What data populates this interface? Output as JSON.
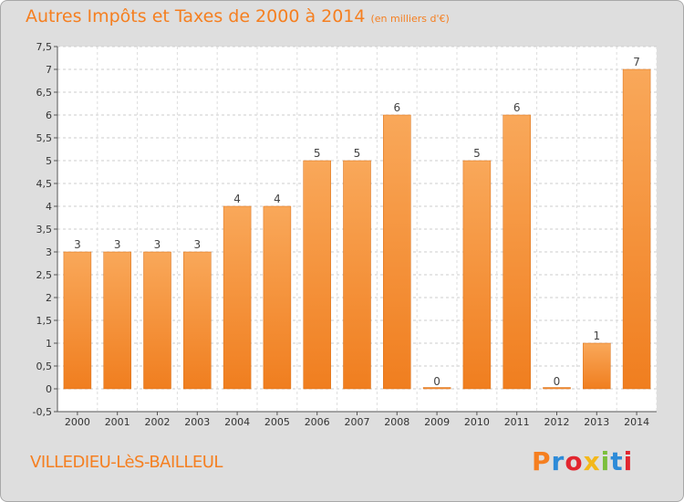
{
  "chart_data": {
    "type": "bar",
    "title": "Autres Impôts et Taxes de 2000 à 2014",
    "subtitle": "(en milliers d'€)",
    "xlabel": "",
    "ylabel": "",
    "categories": [
      "2000",
      "2001",
      "2002",
      "2003",
      "2004",
      "2005",
      "2006",
      "2007",
      "2008",
      "2009",
      "2010",
      "2011",
      "2012",
      "2013",
      "2014"
    ],
    "values": [
      3,
      3,
      3,
      3,
      4,
      4,
      5,
      5,
      6,
      0,
      5,
      6,
      0,
      1,
      7
    ],
    "data_labels": [
      "3",
      "3",
      "3",
      "3",
      "4",
      "4",
      "5",
      "5",
      "6",
      "0",
      "5",
      "6",
      "0",
      "1",
      "7"
    ],
    "ylim": [
      -0.5,
      7.5
    ],
    "yticks": [
      -0.5,
      0,
      0.5,
      1,
      1.5,
      2,
      2.5,
      3,
      3.5,
      4,
      4.5,
      5,
      5.5,
      6,
      6.5,
      7,
      7.5
    ],
    "ytick_labels": [
      "-0,5",
      "0",
      "0,5",
      "1",
      "1,5",
      "2",
      "2,5",
      "3",
      "3,5",
      "4",
      "4,5",
      "5",
      "5,5",
      "6",
      "6,5",
      "7",
      "7,5"
    ],
    "grid": true,
    "legend": "none",
    "bar_color": "#f07e1f",
    "bar_highlight_color": "#f9a85a"
  },
  "footer": {
    "commune": "VILLEDIEU-LèS-BAILLEUL",
    "brand": "Proxiti"
  },
  "colors": {
    "title": "#f57f20",
    "plot_background": "#ffffff",
    "frame_background": "#dedede",
    "brand_letters": [
      "#f57f20",
      "#2e8bd8",
      "#e2262f",
      "#f3b81b",
      "#7cbf3c",
      "#2e8bd8",
      "#e2262f"
    ]
  }
}
